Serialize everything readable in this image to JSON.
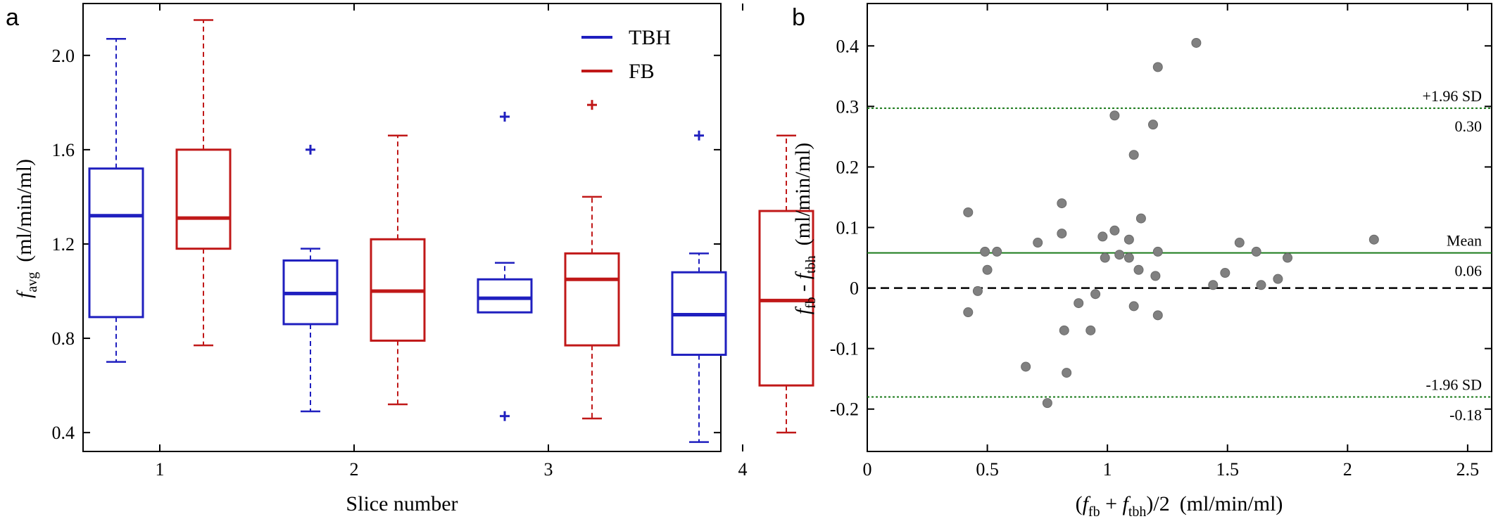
{
  "chart_data": [
    {
      "panel": "a",
      "type": "box",
      "xlabel": "Slice number",
      "ylabel": {
        "main": "f",
        "sub": "avg",
        "units": "(ml/min/ml)"
      },
      "categories": [
        "1",
        "2",
        "3",
        "4"
      ],
      "ylim": [
        0.32,
        2.22
      ],
      "yticks": [
        0.4,
        0.8,
        1.2,
        1.6,
        2.0
      ],
      "ytick_labels": [
        "0.4",
        "0.8",
        "1.2",
        "1.6",
        "2.0"
      ],
      "legend": {
        "position": "top-right"
      },
      "series": [
        {
          "name": "TBH",
          "color": "#1f1fbf",
          "boxes": [
            {
              "category": "1",
              "whisker_low": 0.7,
              "q1": 0.89,
              "median": 1.32,
              "q3": 1.52,
              "whisker_high": 2.07,
              "outliers": []
            },
            {
              "category": "2",
              "whisker_low": 0.49,
              "q1": 0.86,
              "median": 0.99,
              "q3": 1.13,
              "whisker_high": 1.18,
              "outliers": [
                1.6
              ]
            },
            {
              "category": "3",
              "whisker_low": 0.91,
              "q1": 0.91,
              "median": 0.97,
              "q3": 1.05,
              "whisker_high": 1.12,
              "outliers": [
                1.74,
                0.47
              ]
            },
            {
              "category": "4",
              "whisker_low": 0.36,
              "q1": 0.73,
              "median": 0.9,
              "q3": 1.08,
              "whisker_high": 1.16,
              "outliers": [
                1.66
              ]
            }
          ]
        },
        {
          "name": "FB",
          "color": "#c01818",
          "boxes": [
            {
              "category": "1",
              "whisker_low": 0.77,
              "q1": 1.18,
              "median": 1.31,
              "q3": 1.6,
              "whisker_high": 2.15,
              "outliers": []
            },
            {
              "category": "2",
              "whisker_low": 0.52,
              "q1": 0.79,
              "median": 1.0,
              "q3": 1.22,
              "whisker_high": 1.66,
              "outliers": []
            },
            {
              "category": "3",
              "whisker_low": 0.46,
              "q1": 0.77,
              "median": 1.05,
              "q3": 1.16,
              "whisker_high": 1.4,
              "outliers": [
                1.79
              ]
            },
            {
              "category": "4",
              "whisker_low": 0.4,
              "q1": 0.6,
              "median": 0.96,
              "q3": 1.34,
              "whisker_high": 1.66,
              "outliers": []
            }
          ]
        }
      ]
    },
    {
      "panel": "b",
      "type": "scatter",
      "subtype": "bland-altman",
      "xlabel": "(f_fb + f_tbh)/2  (ml/min/ml)",
      "ylabel": "f_fb - f_tbh  (ml/min/ml)",
      "xlim": [
        0,
        2.6
      ],
      "ylim": [
        -0.27,
        0.47
      ],
      "xticks": [
        0,
        0.5,
        1,
        1.5,
        2,
        2.5
      ],
      "xtick_labels": [
        "0",
        "0.5",
        "1",
        "1.5",
        "2",
        "2.5"
      ],
      "yticks": [
        -0.2,
        -0.1,
        0,
        0.1,
        0.2,
        0.3,
        0.4
      ],
      "ytick_labels": [
        "-0.2",
        "-0.1",
        "0",
        "0.1",
        "0.2",
        "0.3",
        "0.4"
      ],
      "point_color": "#808080",
      "points": [
        [
          0.42,
          0.125
        ],
        [
          0.42,
          -0.04
        ],
        [
          0.46,
          -0.005
        ],
        [
          0.49,
          0.06
        ],
        [
          0.5,
          0.03
        ],
        [
          0.54,
          0.06
        ],
        [
          0.66,
          -0.13
        ],
        [
          0.71,
          0.075
        ],
        [
          0.75,
          -0.19
        ],
        [
          0.81,
          0.14
        ],
        [
          0.81,
          0.09
        ],
        [
          0.82,
          -0.07
        ],
        [
          0.83,
          -0.14
        ],
        [
          0.88,
          -0.025
        ],
        [
          0.93,
          -0.07
        ],
        [
          0.95,
          -0.01
        ],
        [
          0.98,
          0.085
        ],
        [
          0.99,
          0.05
        ],
        [
          1.03,
          0.285
        ],
        [
          1.03,
          0.095
        ],
        [
          1.05,
          0.055
        ],
        [
          1.09,
          0.08
        ],
        [
          1.09,
          0.05
        ],
        [
          1.11,
          0.22
        ],
        [
          1.11,
          -0.03
        ],
        [
          1.13,
          0.03
        ],
        [
          1.14,
          0.115
        ],
        [
          1.19,
          0.27
        ],
        [
          1.2,
          0.02
        ],
        [
          1.21,
          0.365
        ],
        [
          1.21,
          0.06
        ],
        [
          1.21,
          -0.045
        ],
        [
          1.37,
          0.405
        ],
        [
          1.44,
          0.005
        ],
        [
          1.49,
          0.025
        ],
        [
          1.55,
          0.075
        ],
        [
          1.62,
          0.06
        ],
        [
          1.64,
          0.005
        ],
        [
          1.71,
          0.015
        ],
        [
          1.75,
          0.05
        ],
        [
          2.11,
          0.08
        ]
      ],
      "reference_lines": [
        {
          "name": "+1.96 SD",
          "value_label": "0.30",
          "y": 0.297,
          "color": "#1a7a1a",
          "style": "dotted"
        },
        {
          "name": "Mean",
          "value_label": "0.06",
          "y": 0.058,
          "color": "#1a7a1a",
          "style": "solid"
        },
        {
          "name": "",
          "value_label": "",
          "y": 0.0,
          "color": "#000000",
          "style": "dashed"
        },
        {
          "name": "-1.96 SD",
          "value_label": "-0.18",
          "y": -0.18,
          "color": "#1a7a1a",
          "style": "dotted"
        }
      ]
    }
  ],
  "panel_labels": {
    "a": "a",
    "b": "b"
  },
  "legend_labels": {
    "tbh": "TBH",
    "fb": "FB"
  },
  "axis_text": {
    "a_ylabel_main": "f",
    "a_ylabel_sub": "avg",
    "a_ylabel_units": "(ml/min/ml)",
    "a_xlabel": "Slice number",
    "b_ylabel_f1": "f",
    "b_ylabel_sub1": "fb",
    "b_ylabel_minus": " - ",
    "b_ylabel_f2": "f",
    "b_ylabel_sub2": "tbh",
    "b_ylabel_units": "(ml/min/ml)",
    "b_xlabel_open": "(",
    "b_xlabel_f1": "f",
    "b_xlabel_sub1": "fb",
    "b_xlabel_plus": " + ",
    "b_xlabel_f2": "f",
    "b_xlabel_sub2": "tbh",
    "b_xlabel_close": ")/2",
    "b_xlabel_units": "(ml/min/ml)"
  }
}
